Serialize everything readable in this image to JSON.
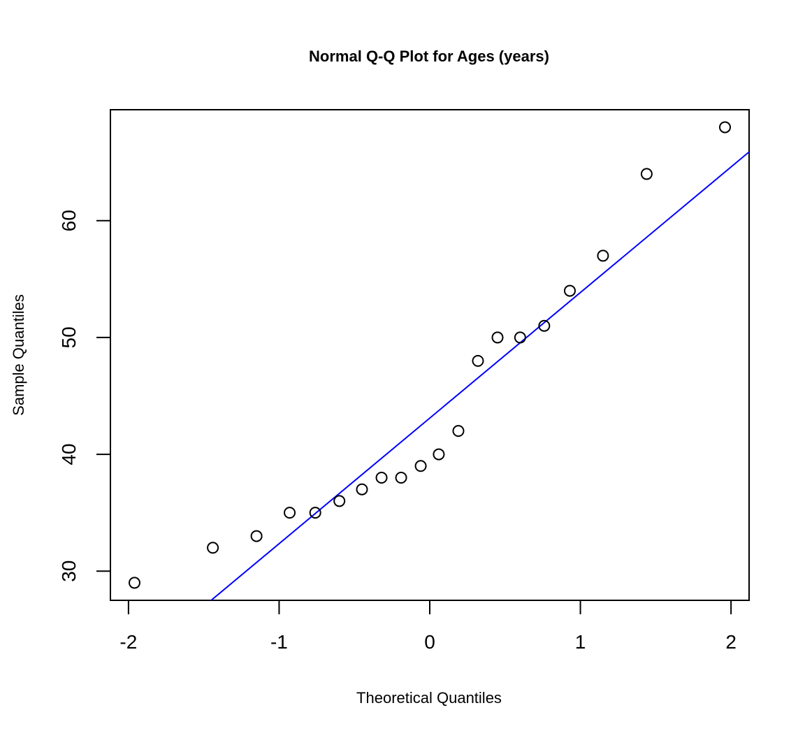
{
  "chart_data": {
    "type": "scatter",
    "title": "Normal Q-Q Plot for Ages (years)",
    "xlabel": "Theoretical Quantiles",
    "ylabel": "Sample Quantiles",
    "xlim": [
      -2.12,
      2.12
    ],
    "ylim": [
      27.5,
      69.5
    ],
    "x_ticks": [
      -2,
      -1,
      0,
      1,
      2
    ],
    "x_tick_labels": [
      "-2",
      "-1",
      "0",
      "1",
      "2"
    ],
    "y_ticks": [
      30,
      40,
      50,
      60
    ],
    "y_tick_labels": [
      "30",
      "40",
      "50",
      "60"
    ],
    "grid": false,
    "points": {
      "x": [
        -1.96,
        -1.44,
        -1.15,
        -0.93,
        -0.76,
        -0.6,
        -0.45,
        -0.32,
        -0.19,
        -0.06,
        0.06,
        0.19,
        0.32,
        0.45,
        0.6,
        0.76,
        0.93,
        1.15,
        1.44,
        1.96
      ],
      "y": [
        29,
        32,
        33,
        35,
        35,
        36,
        37,
        38,
        38,
        39,
        40,
        42,
        48,
        50,
        50,
        51,
        54,
        57,
        64,
        68
      ]
    },
    "reference_line": {
      "color": "#0000ff",
      "intercept": 43.1,
      "slope": 10.75
    },
    "colors": {
      "points": "#000000",
      "line": "#0000ff"
    }
  }
}
